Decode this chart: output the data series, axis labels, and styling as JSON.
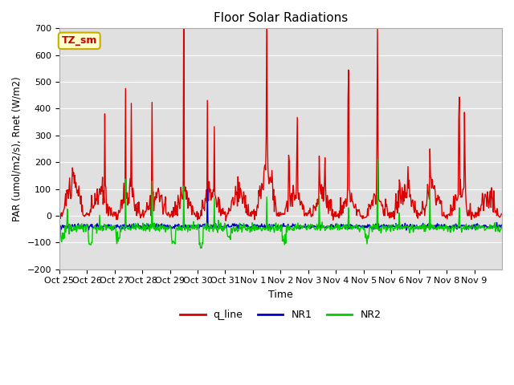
{
  "title": "Floor Solar Radiations",
  "xlabel": "Time",
  "ylabel": "PAR (umol/m2/s), Rnet (W/m2)",
  "ylim": [
    -200,
    700
  ],
  "yticks": [
    -200,
    -100,
    0,
    100,
    200,
    300,
    400,
    500,
    600,
    700
  ],
  "xtick_labels": [
    "Oct 25",
    "Oct 26",
    "Oct 27",
    "Oct 28",
    "Oct 29",
    "Oct 30",
    "Oct 31",
    "Nov 1",
    "Nov 2",
    "Nov 3",
    "Nov 4",
    "Nov 5",
    "Nov 6",
    "Nov 7",
    "Nov 8",
    "Nov 9"
  ],
  "bg_color": "#e0e0e0",
  "fig_bg": "#ffffff",
  "line_colors": {
    "q_line": "#dd0000",
    "NR1": "#0000cc",
    "NR2": "#00cc00"
  },
  "line_width": 1.0,
  "tz_label": "TZ_sm",
  "tz_label_color": "#cc0000",
  "tz_box_color": "#ffffcc",
  "tz_box_edge": "#ccaa00",
  "n_days": 16,
  "pts_per_day": 48
}
